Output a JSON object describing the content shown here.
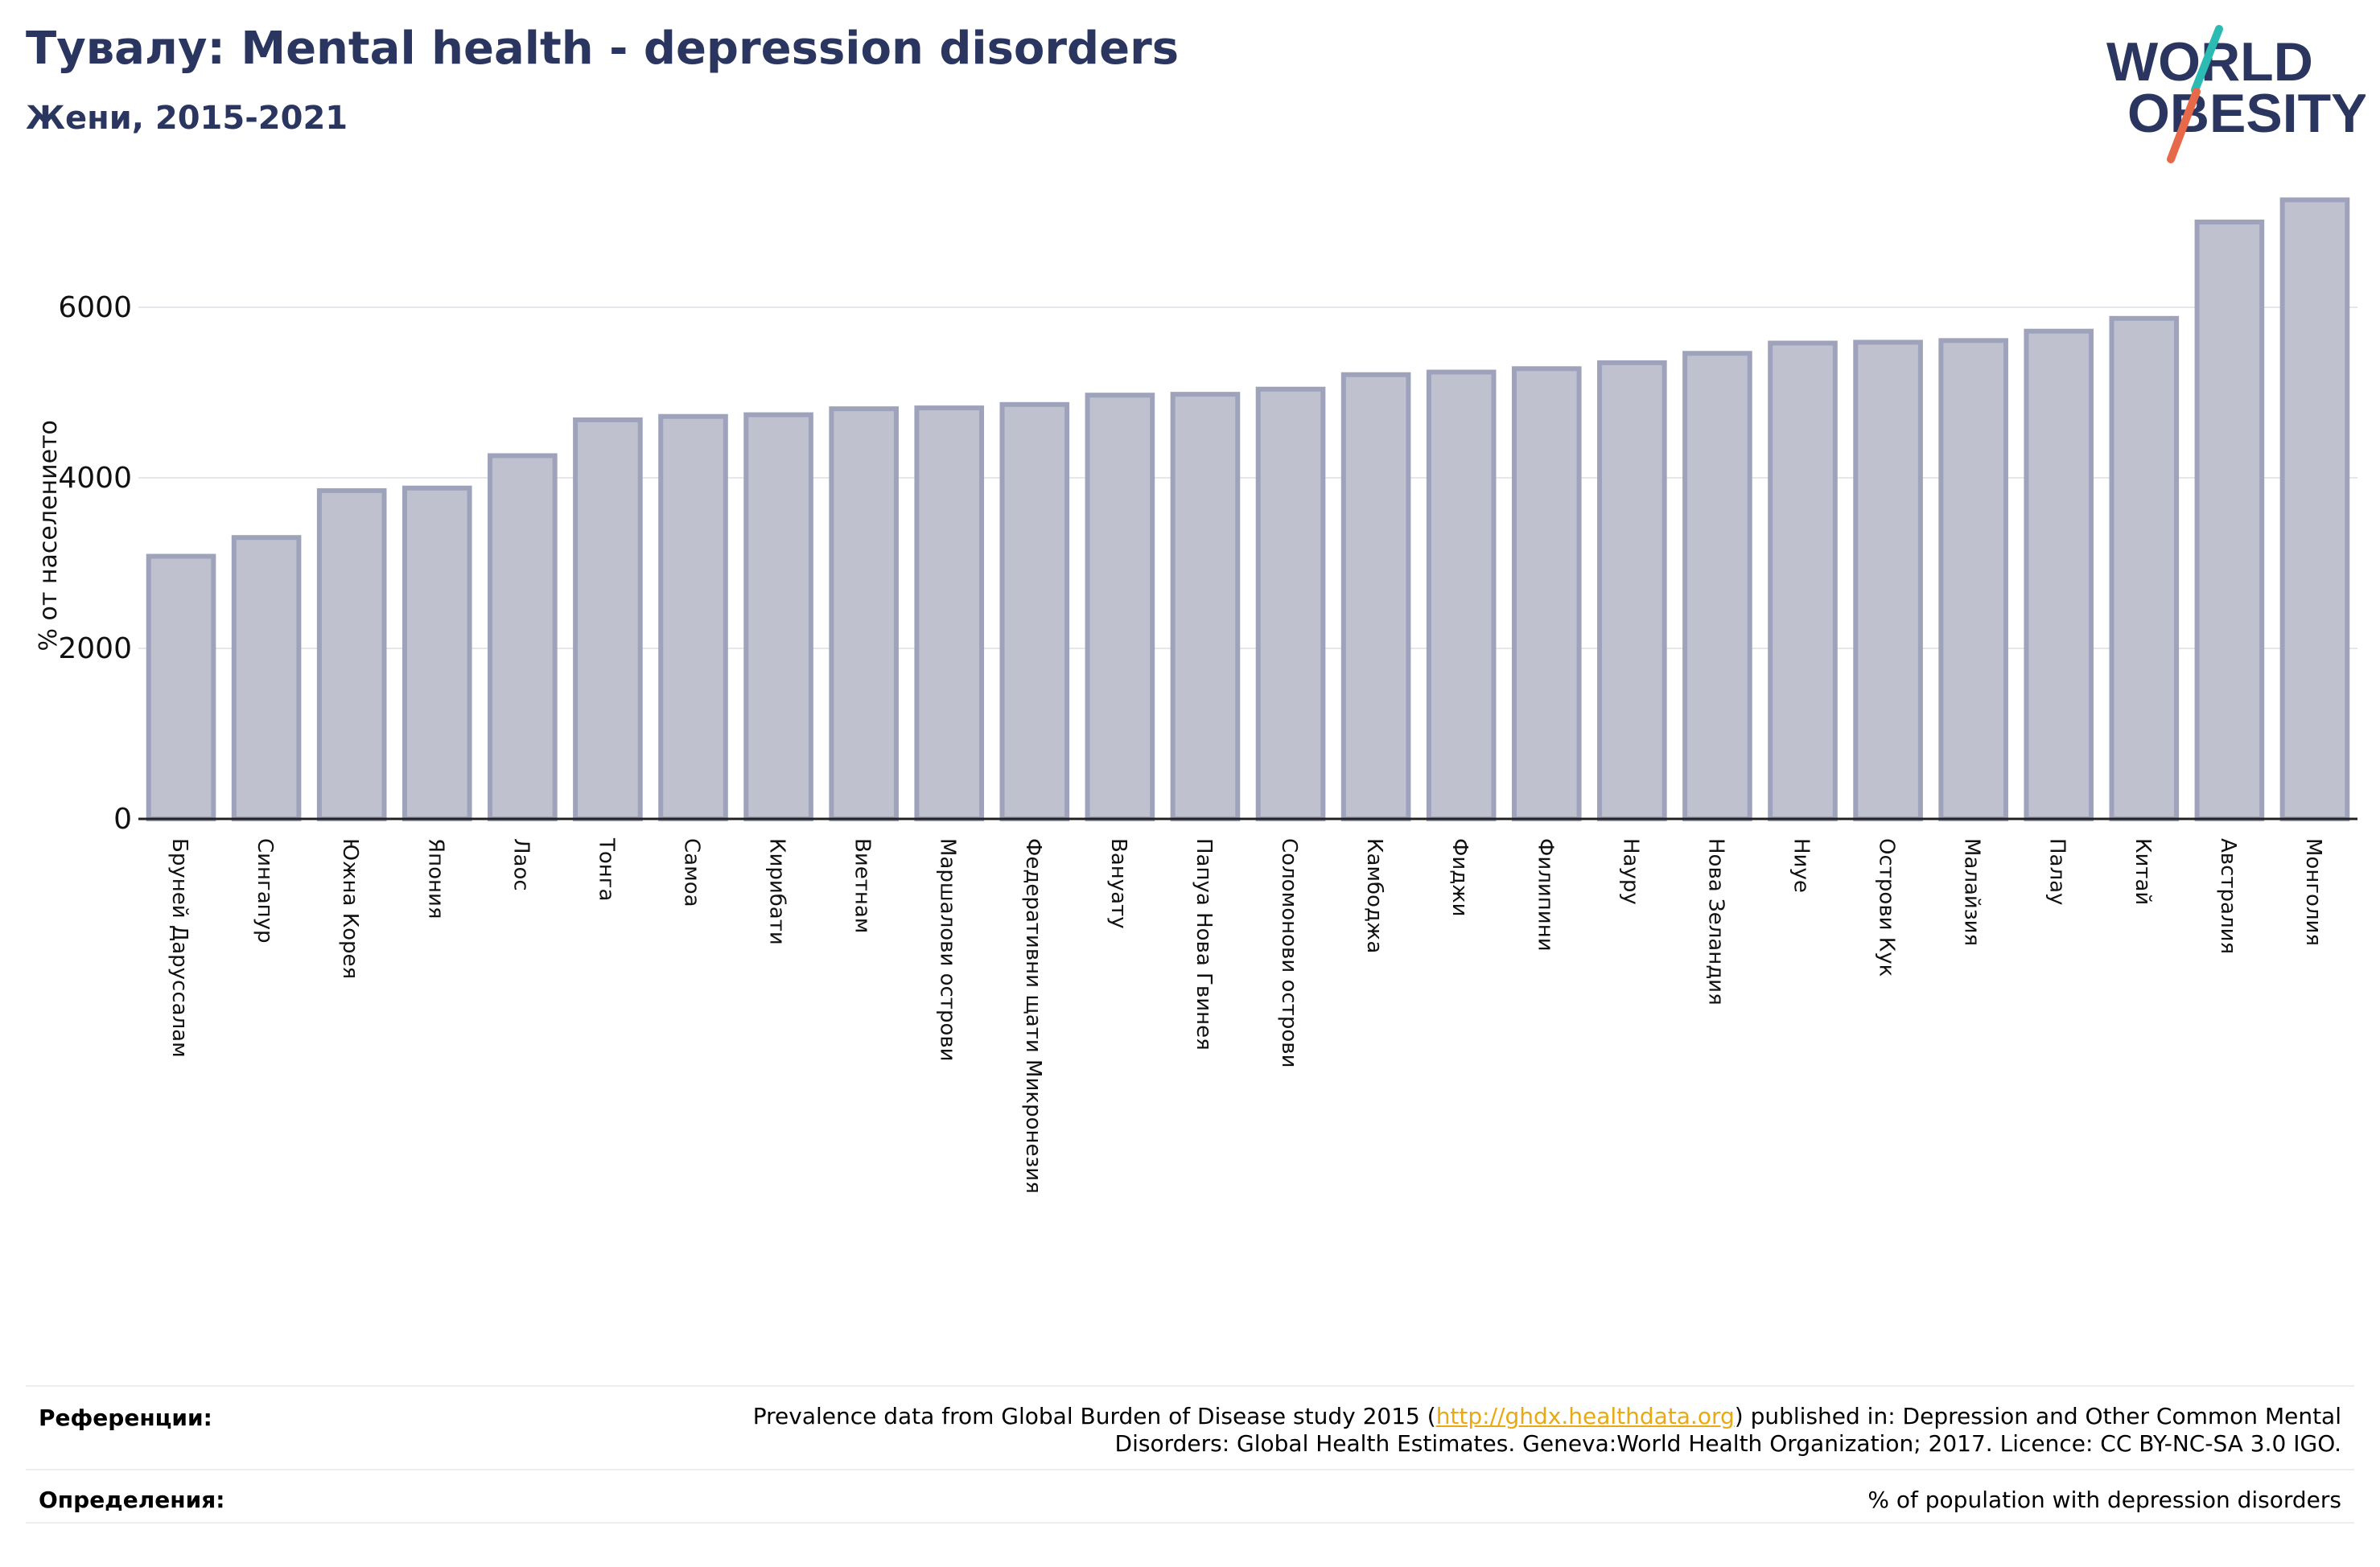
{
  "header": {
    "title": "Тувалу: Mental health - depression disorders",
    "subtitle": "Жени, 2015-2021"
  },
  "logo": {
    "line1": "WORLD",
    "line2": "OBESITY"
  },
  "colors": {
    "title": "#2a3560",
    "bar_fill": "#bfc1cf",
    "bar_stroke": "#9ea3bb",
    "logo_teal": "#2bbbb3",
    "logo_red": "#e8694a",
    "link": "#e8a912"
  },
  "chart_data": {
    "type": "bar",
    "ylabel": "% от населението",
    "ylim": [
      0,
      7400
    ],
    "yticks": [
      0,
      2000,
      4000,
      6000
    ],
    "grid": true,
    "categories": [
      "Бруней Даруссалам",
      "Сингапур",
      "Южна Корея",
      "Япония",
      "Лаос",
      "Тонга",
      "Самоа",
      "Кирибати",
      "Виетнам",
      "Маршалови острови",
      "Федеративни щати Микронезия",
      "Вануату",
      "Папуа Нова Гвинея",
      "Соломонови острови",
      "Камбоджа",
      "Фиджи",
      "Филипини",
      "Науру",
      "Нова Зеландия",
      "Ниуе",
      "Острови Кук",
      "Малайзия",
      "Палау",
      "Китай",
      "Австралия",
      "Монголия"
    ],
    "values": [
      3080,
      3300,
      3850,
      3880,
      4260,
      4680,
      4720,
      4740,
      4810,
      4820,
      4860,
      4970,
      4980,
      5040,
      5210,
      5240,
      5280,
      5350,
      5460,
      5580,
      5590,
      5610,
      5720,
      5870,
      7000,
      7260
    ]
  },
  "footer": {
    "references_label": "Референции:",
    "references_pre": "Prevalence data from Global Burden of Disease study 2015 (",
    "references_link": "http://ghdx.healthdata.org",
    "references_post": ") published in: Depression and Other Common Mental",
    "references_line2": "Disorders: Global Health Estimates. Geneva:World Health Organization; 2017. Licence: CC BY-NC-SA 3.0 IGO.",
    "definitions_label": "Определения:",
    "definitions_text": "% of population with depression disorders"
  }
}
